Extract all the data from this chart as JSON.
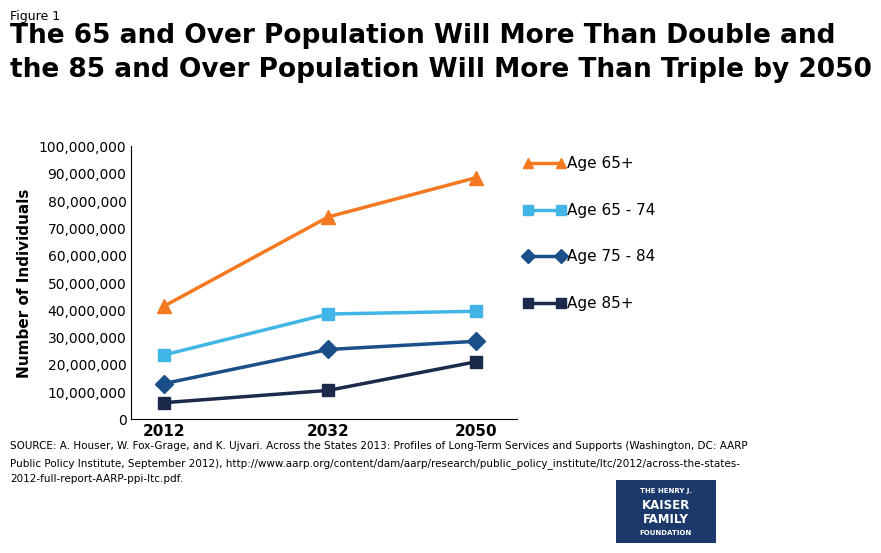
{
  "figure_label": "Figure 1",
  "title_line1": "The 65 and Over Population Will More Than Double and",
  "title_line2": "the 85 and Over Population Will More Than Triple by 2050",
  "years": [
    2012,
    2032,
    2050
  ],
  "series": [
    {
      "label": "Age 65+",
      "values": [
        41400000,
        74100000,
        88500000
      ],
      "color": "#F47920",
      "marker": "^",
      "markersize": 10,
      "linewidth": 2.5,
      "zorder": 5
    },
    {
      "label": "Age 65 - 74",
      "values": [
        23500000,
        38500000,
        39500000
      ],
      "color": "#41B6E6",
      "marker": "s",
      "markersize": 9,
      "linewidth": 2.5,
      "zorder": 4
    },
    {
      "label": "Age 75 - 84",
      "values": [
        13000000,
        25500000,
        28500000
      ],
      "color": "#1B4F8A",
      "marker": "D",
      "markersize": 9,
      "linewidth": 2.5,
      "zorder": 3
    },
    {
      "label": "Age 85+",
      "values": [
        6000000,
        10500000,
        21000000
      ],
      "color": "#1B2A4A",
      "marker": "s",
      "markersize": 9,
      "linewidth": 2.5,
      "zorder": 2
    }
  ],
  "ylabel": "Number of Individuals",
  "ylim": [
    0,
    100000000
  ],
  "yticks": [
    0,
    10000000,
    20000000,
    30000000,
    40000000,
    50000000,
    60000000,
    70000000,
    80000000,
    90000000,
    100000000
  ],
  "bg_color": "#FFFFFF",
  "title_fontsize": 19,
  "label_fontsize": 11,
  "tick_fontsize": 10,
  "legend_fontsize": 11,
  "figure_label_fontsize": 9,
  "source_fontsize": 7.5,
  "kff_box_color": "#1B3A6B"
}
